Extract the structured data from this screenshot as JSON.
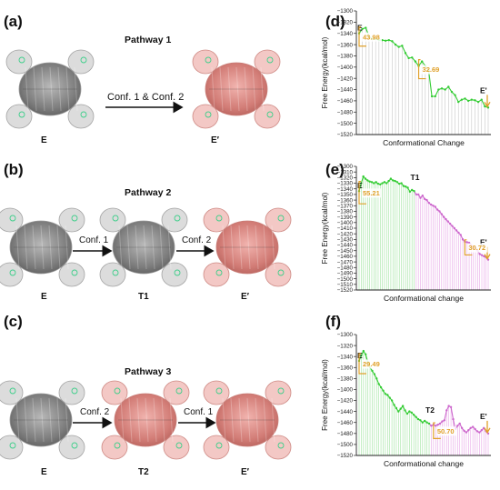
{
  "panels": [
    {
      "label": "(a)",
      "title": "Pathway 1",
      "states": [
        "E",
        "E′"
      ],
      "arrows": [
        "Conf. 1 & Conf. 2"
      ]
    },
    {
      "label": "(b)",
      "title": "Pathway 2",
      "states": [
        "E",
        "T1",
        "E′"
      ],
      "arrows": [
        "Conf. 1",
        "Conf. 2"
      ]
    },
    {
      "label": "(c)",
      "title": "Pathway 3",
      "states": [
        "E",
        "T2",
        "E′"
      ],
      "arrows": [
        "Conf. 2",
        "Conf. 1"
      ]
    }
  ],
  "colors": {
    "grey_protein": "#8c8c8c",
    "pink_protein": "#d98a85",
    "green": "#33cc33",
    "violet": "#cc66cc",
    "highlight": "#e0a02a"
  },
  "chart_data": [
    {
      "panel": "(d)",
      "type": "line",
      "xlabel": "Conformational Change",
      "ylabel": "Free Energy(kcal/mol)",
      "ylim": [
        -1520,
        -1300
      ],
      "ytick_step": 20,
      "grid": "vertical",
      "n_points": 40,
      "phase_split": 40,
      "values": [
        -1340,
        -1332,
        -1330,
        -1345,
        -1350,
        -1350,
        -1352,
        -1352,
        -1353,
        -1352,
        -1354,
        -1360,
        -1364,
        -1362,
        -1375,
        -1384,
        -1383,
        -1390,
        -1398,
        -1390,
        -1398,
        -1406,
        -1452,
        -1452,
        -1440,
        -1438,
        -1440,
        -1435,
        -1444,
        -1450,
        -1462,
        -1458,
        -1456,
        -1460,
        -1458,
        -1459,
        -1462,
        -1458,
        -1470,
        -1472
      ],
      "start_label": "E",
      "end_label": "E'",
      "annotations": [
        {
          "text": "43.98",
          "at": 0
        },
        {
          "text": "32.69",
          "at": 18
        }
      ]
    },
    {
      "panel": "(e)",
      "type": "line",
      "xlabel": "Conformational change",
      "ylabel": "Free Energy(kcal/mol)",
      "ylim": [
        -1520,
        -1300
      ],
      "ytick_step": 10,
      "grid": "vertical",
      "n_points": 62,
      "phase_split": 27,
      "values": [
        -1344,
        -1330,
        -1318,
        -1322,
        -1325,
        -1327,
        -1328,
        -1330,
        -1328,
        -1331,
        -1332,
        -1330,
        -1328,
        -1330,
        -1326,
        -1322,
        -1325,
        -1326,
        -1328,
        -1331,
        -1330,
        -1335,
        -1336,
        -1338,
        -1345,
        -1342,
        -1344,
        -1350,
        -1350,
        -1356,
        -1352,
        -1358,
        -1360,
        -1365,
        -1368,
        -1370,
        -1372,
        -1377,
        -1380,
        -1385,
        -1390,
        -1394,
        -1398,
        -1402,
        -1406,
        -1410,
        -1414,
        -1418,
        -1422,
        -1430,
        -1434,
        -1435,
        -1436,
        -1440,
        -1444,
        -1446,
        -1450,
        -1456,
        -1458,
        -1460,
        -1462,
        -1466
      ],
      "start_label": "E",
      "mid_label": "T1",
      "end_label": "E'",
      "annotations": [
        {
          "text": "55.21",
          "at": 0
        },
        {
          "text": "30.72",
          "at": 50
        }
      ]
    },
    {
      "panel": "(f)",
      "type": "line",
      "xlabel": "Conformational change",
      "ylabel": "Free Energy(kcal/mol)",
      "ylim": [
        -1520,
        -1300
      ],
      "ytick_step": 20,
      "grid": "vertical",
      "n_points": 60,
      "phase_split": 33,
      "values": [
        -1348,
        -1338,
        -1330,
        -1336,
        -1350,
        -1360,
        -1366,
        -1372,
        -1380,
        -1390,
        -1396,
        -1402,
        -1408,
        -1410,
        -1415,
        -1420,
        -1428,
        -1434,
        -1440,
        -1435,
        -1430,
        -1438,
        -1444,
        -1440,
        -1442,
        -1446,
        -1450,
        -1454,
        -1456,
        -1460,
        -1457,
        -1460,
        -1462,
        -1466,
        -1464,
        -1466,
        -1464,
        -1462,
        -1458,
        -1456,
        -1438,
        -1430,
        -1432,
        -1454,
        -1472,
        -1466,
        -1462,
        -1470,
        -1475,
        -1478,
        -1474,
        -1470,
        -1468,
        -1472,
        -1476,
        -1478,
        -1474,
        -1470,
        -1476,
        -1480
      ],
      "start_label": "E",
      "mid_label": "T2",
      "end_label": "E'",
      "annotations": [
        {
          "text": "29.49",
          "at": 0
        },
        {
          "text": "50.70",
          "at": 34
        }
      ]
    }
  ]
}
